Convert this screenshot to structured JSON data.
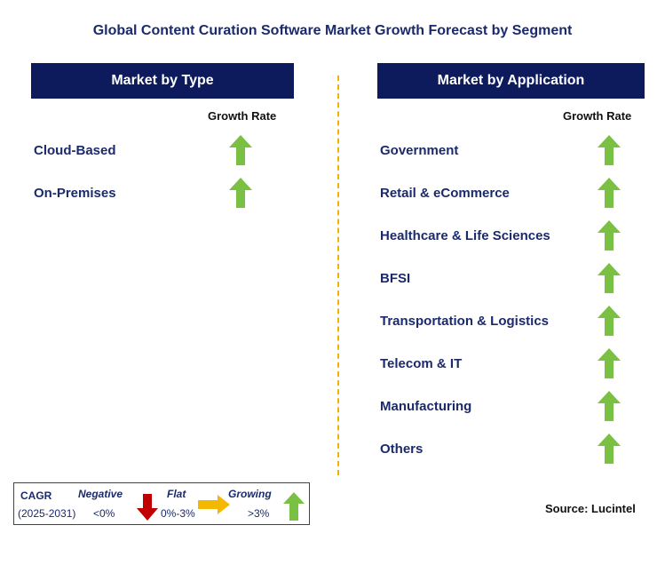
{
  "title": "Global Content Curation Software Market Growth Forecast by Segment",
  "left_panel": {
    "header": "Market by Type",
    "growth_label": "Growth Rate",
    "items": [
      {
        "label": "Cloud-Based",
        "trend": "growing"
      },
      {
        "label": "On-Premises",
        "trend": "growing"
      }
    ]
  },
  "right_panel": {
    "header": "Market by Application",
    "growth_label": "Growth Rate",
    "items": [
      {
        "label": "Government",
        "trend": "growing"
      },
      {
        "label": "Retail & eCommerce",
        "trend": "growing"
      },
      {
        "label": "Healthcare & Life Sciences",
        "trend": "growing"
      },
      {
        "label": "BFSI",
        "trend": "growing"
      },
      {
        "label": "Transportation & Logistics",
        "trend": "growing"
      },
      {
        "label": "Telecom & IT",
        "trend": "growing"
      },
      {
        "label": "Manufacturing",
        "trend": "growing"
      },
      {
        "label": "Others",
        "trend": "growing"
      }
    ]
  },
  "legend": {
    "cagr_label": "CAGR",
    "period": "(2025-2031)",
    "negative_label": "Negative",
    "negative_value": "<0%",
    "flat_label": "Flat",
    "flat_value": "0%-3%",
    "growing_label": "Growing",
    "growing_value": ">3%"
  },
  "source": "Source: Lucintel",
  "colors": {
    "header_bg": "#0d1a5c",
    "growing": "#7ac143",
    "flat": "#f5b800",
    "negative": "#c00000",
    "divider": "#f0b400"
  }
}
